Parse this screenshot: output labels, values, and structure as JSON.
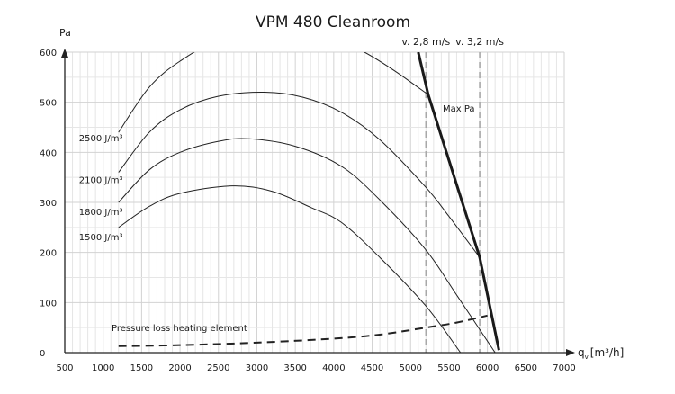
{
  "chart_data": {
    "type": "line",
    "title": "VPM 480 Cleanroom",
    "ylabel": "Pa",
    "xlabel": "q",
    "xlabel_sub": "v",
    "xlabel_unit": "[m³/h]",
    "xlim": [
      500,
      7000
    ],
    "ylim": [
      0,
      600
    ],
    "x_ticks": [
      500,
      1000,
      1500,
      2000,
      2500,
      3000,
      3500,
      4000,
      4500,
      5000,
      5500,
      6000,
      6500,
      7000
    ],
    "y_ticks": [
      0,
      100,
      200,
      300,
      400,
      500,
      600
    ],
    "x_minor_step": 100,
    "y_minor_step": 50,
    "grid": true,
    "series": [
      {
        "name": "2500 J/m³",
        "label_at": [
          1200,
          440
        ],
        "points": [
          [
            1200,
            440
          ],
          [
            1600,
            530
          ],
          [
            2000,
            582
          ],
          [
            2500,
            622
          ],
          [
            3300,
            645
          ],
          [
            4000,
            628
          ],
          [
            4400,
            600
          ],
          [
            4800,
            562
          ],
          [
            5230,
            515
          ]
        ]
      },
      {
        "name": "2100 J/m³",
        "label_at": [
          1200,
          360
        ],
        "points": [
          [
            1200,
            360
          ],
          [
            1600,
            440
          ],
          [
            2000,
            485
          ],
          [
            2500,
            512
          ],
          [
            3100,
            520
          ],
          [
            3600,
            510
          ],
          [
            4100,
            480
          ],
          [
            4600,
            425
          ],
          [
            5200,
            330
          ],
          [
            5500,
            272
          ],
          [
            5900,
            190
          ]
        ]
      },
      {
        "name": "1800 J/m³",
        "label_at": [
          1200,
          300
        ],
        "points": [
          [
            1200,
            300
          ],
          [
            1600,
            365
          ],
          [
            2000,
            400
          ],
          [
            2500,
            422
          ],
          [
            2900,
            427
          ],
          [
            3500,
            412
          ],
          [
            4100,
            372
          ],
          [
            4600,
            305
          ],
          [
            5200,
            205
          ],
          [
            5600,
            115
          ],
          [
            6100,
            0
          ]
        ]
      },
      {
        "name": "1500 J/m³",
        "label_at": [
          1200,
          250
        ],
        "points": [
          [
            1200,
            250
          ],
          [
            1600,
            292
          ],
          [
            2000,
            318
          ],
          [
            2680,
            333
          ],
          [
            3200,
            322
          ],
          [
            3700,
            290
          ],
          [
            4100,
            260
          ],
          [
            4600,
            190
          ],
          [
            5200,
            93
          ],
          [
            5650,
            0
          ]
        ]
      }
    ],
    "max_pa_line": {
      "label": "Max Pa",
      "points": [
        [
          5100,
          600
        ],
        [
          5230,
          515
        ],
        [
          5900,
          190
        ],
        [
          6150,
          5
        ]
      ]
    },
    "pressure_loss": {
      "label": "Pressure loss heating element",
      "points": [
        [
          1200,
          13
        ],
        [
          2000,
          15
        ],
        [
          3000,
          20
        ],
        [
          4000,
          28
        ],
        [
          4600,
          36
        ],
        [
          5200,
          50
        ],
        [
          5600,
          60
        ],
        [
          6000,
          74
        ]
      ]
    },
    "velocity_lines": [
      {
        "label": "v. 2,8 m/s",
        "x": 5200
      },
      {
        "label": "v. 3,2 m/s",
        "x": 5900
      }
    ]
  }
}
